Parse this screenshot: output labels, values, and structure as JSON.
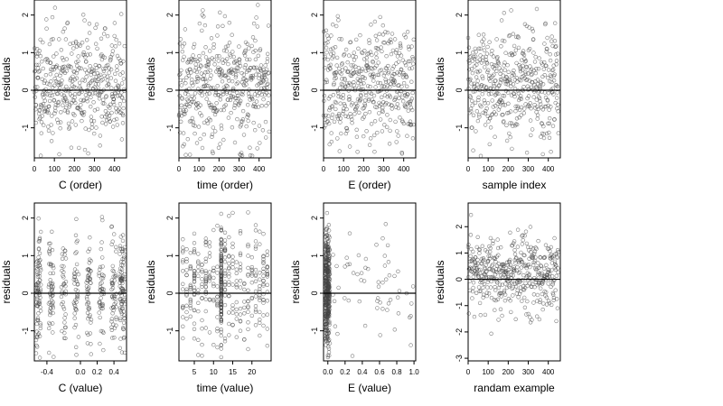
{
  "chart_data": [
    {
      "type": "scatter",
      "xlabel": "C (order)",
      "ylabel": "residuals",
      "xlim": [
        0,
        460
      ],
      "ylim": [
        -1.8,
        2.4
      ],
      "xticks": [
        0,
        100,
        200,
        300,
        400
      ],
      "xtick_labels": [
        "0",
        "100",
        "200",
        "300",
        "400"
      ],
      "yticks": [
        -1,
        0,
        1,
        2
      ],
      "ytick_labels": [
        "-1",
        "0",
        "1",
        "2"
      ],
      "hline": 0,
      "n_points": 450,
      "x_kind": "index",
      "seed": 11
    },
    {
      "type": "scatter",
      "xlabel": "time (order)",
      "ylabel": "residuals",
      "xlim": [
        0,
        460
      ],
      "ylim": [
        -1.8,
        2.4
      ],
      "xticks": [
        0,
        100,
        200,
        300,
        400
      ],
      "xtick_labels": [
        "0",
        "100",
        "200",
        "300",
        "400"
      ],
      "yticks": [
        -1,
        0,
        1,
        2
      ],
      "ytick_labels": [
        "-1",
        "0",
        "1",
        "2"
      ],
      "hline": 0,
      "n_points": 450,
      "x_kind": "index",
      "seed": 23
    },
    {
      "type": "scatter",
      "xlabel": "E (order)",
      "ylabel": "residuals",
      "xlim": [
        0,
        460
      ],
      "ylim": [
        -1.8,
        2.4
      ],
      "xticks": [
        0,
        100,
        200,
        300,
        400
      ],
      "xtick_labels": [
        "0",
        "100",
        "200",
        "300",
        "400"
      ],
      "yticks": [
        -1,
        0,
        1,
        2
      ],
      "ytick_labels": [
        "-1",
        "0",
        "1",
        "2"
      ],
      "hline": 0,
      "n_points": 450,
      "x_kind": "index",
      "seed": 37
    },
    {
      "type": "scatter",
      "xlabel": "sample index",
      "ylabel": "residuals",
      "xlim": [
        0,
        460
      ],
      "ylim": [
        -1.8,
        2.4
      ],
      "xticks": [
        0,
        100,
        200,
        300,
        400
      ],
      "xtick_labels": [
        "0",
        "100",
        "200",
        "300",
        "400"
      ],
      "yticks": [
        -1,
        0,
        1,
        2
      ],
      "ytick_labels": [
        "-1",
        "0",
        "1",
        "2"
      ],
      "hline": 0,
      "n_points": 450,
      "x_kind": "index",
      "seed": 41
    },
    {
      "type": "scatter",
      "xlabel": "C (value)",
      "ylabel": "residuals",
      "xlim": [
        -0.55,
        0.55
      ],
      "ylim": [
        -1.8,
        2.4
      ],
      "xticks": [
        -0.4,
        0.0,
        0.2,
        0.4
      ],
      "xtick_labels": [
        "-0.4",
        "0.0",
        "0.2",
        "0.4"
      ],
      "yticks": [
        -1,
        0,
        1,
        2
      ],
      "ytick_labels": [
        "-1",
        "0",
        "1",
        "2"
      ],
      "hline": 0,
      "n_points": 450,
      "x_kind": "c_value",
      "seed": 53
    },
    {
      "type": "scatter",
      "xlabel": "time (value)",
      "ylabel": "residuals",
      "xlim": [
        1,
        25
      ],
      "ylim": [
        -1.8,
        2.4
      ],
      "xticks": [
        5,
        10,
        15,
        20
      ],
      "xtick_labels": [
        "5",
        "10",
        "15",
        "20"
      ],
      "yticks": [
        -1,
        0,
        1,
        2
      ],
      "ytick_labels": [
        "-1",
        "0",
        "1",
        "2"
      ],
      "hline": 0,
      "n_points": 450,
      "x_kind": "time_value",
      "seed": 67
    },
    {
      "type": "scatter",
      "xlabel": "E (value)",
      "ylabel": "residuals",
      "xlim": [
        -0.05,
        1.02
      ],
      "ylim": [
        -1.8,
        2.4
      ],
      "xticks": [
        0.0,
        0.2,
        0.4,
        0.6,
        0.8,
        1.0
      ],
      "xtick_labels": [
        "0.0",
        "0.2",
        "0.4",
        "0.6",
        "0.8",
        "1.0"
      ],
      "yticks": [
        -1,
        0,
        1,
        2
      ],
      "ytick_labels": [
        "-1",
        "0",
        "1",
        "2"
      ],
      "hline": 0,
      "n_points": 450,
      "x_kind": "e_value",
      "seed": 79
    },
    {
      "type": "scatter",
      "xlabel": "randam example",
      "ylabel": "residuals",
      "xlim": [
        0,
        460
      ],
      "ylim": [
        -3.1,
        2.9
      ],
      "xticks": [
        0,
        100,
        200,
        300,
        400
      ],
      "xtick_labels": [
        "0",
        "100",
        "200",
        "300",
        "400"
      ],
      "yticks": [
        -3,
        -2,
        -1,
        0,
        1,
        2
      ],
      "ytick_labels": [
        "-3",
        "-2",
        "-1",
        "0",
        "1",
        "2"
      ],
      "hline": 0,
      "n_points": 450,
      "x_kind": "index",
      "seed": 97
    }
  ]
}
